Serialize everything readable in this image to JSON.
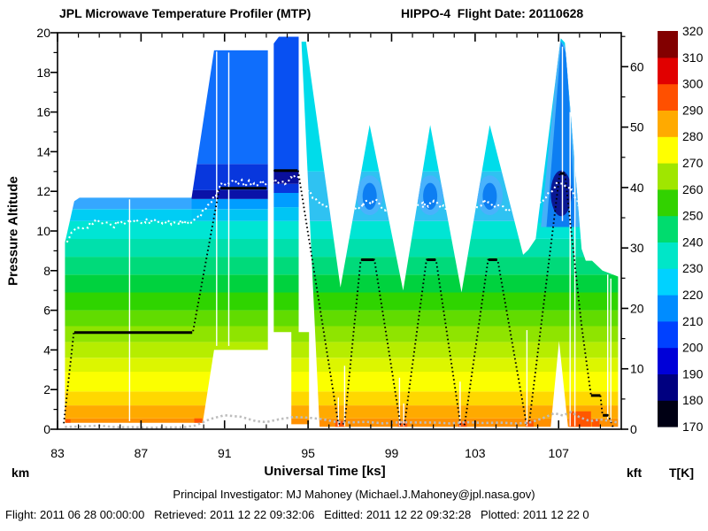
{
  "header": {
    "title_left": "JPL Microwave Temperature Profiler (MTP)",
    "title_right": "HIPPO-4  Flight Date: 20110628"
  },
  "footer": {
    "pi_line": "Principal Investigator: MJ Mahoney (Michael.J.Mahoney@jpl.nasa.gov)",
    "status_line": "Flight: 2011 06 28 00:00:00   Retrieved: 2011 12 22 09:32:06   Editted: 2011 12 22 09:32:28   Plotted: 2011 12 22 0"
  },
  "chart_data": {
    "type": "heatmap",
    "title": "JPL Microwave Temperature Profiler (MTP) - HIPPO-4 temperature curtain",
    "x_axis": {
      "label": "Universal Time [ks]",
      "unit_corner": "km",
      "range": [
        83,
        110
      ],
      "major_ticks": [
        83,
        87,
        91,
        95,
        99,
        103,
        107
      ],
      "minor_ticks": [
        84,
        85,
        86,
        88,
        89,
        90,
        92,
        93,
        94,
        96,
        97,
        98,
        100,
        101,
        102,
        104,
        105,
        106,
        108,
        109
      ]
    },
    "y_axis_left": {
      "label": "Pressure Altitude",
      "unit": "km",
      "range": [
        0,
        20
      ],
      "major_ticks": [
        0,
        2,
        4,
        6,
        8,
        10,
        12,
        14,
        16,
        18,
        20
      ],
      "minor_ticks": [
        1,
        3,
        5,
        7,
        9,
        11,
        13,
        15,
        17,
        19
      ]
    },
    "y_axis_right": {
      "unit": "kft",
      "km_per_kft": 0.3048,
      "major_ticks": [
        0,
        10,
        20,
        30,
        40,
        50,
        60
      ],
      "minor_ticks": [
        5,
        15,
        25,
        35,
        45,
        55,
        65
      ]
    },
    "colorbar": {
      "label": "T[K]",
      "range": [
        170,
        320
      ],
      "ticks": [
        170,
        180,
        190,
        200,
        210,
        220,
        230,
        240,
        250,
        260,
        270,
        280,
        290,
        300,
        310,
        320
      ],
      "colors": [
        "#000014",
        "#000080",
        "#0000d8",
        "#0041ff",
        "#008cff",
        "#00d2ff",
        "#00e6c8",
        "#00dc6e",
        "#32d200",
        "#a0e600",
        "#ffff00",
        "#ffaa00",
        "#ff5000",
        "#e10000",
        "#820000"
      ]
    },
    "base_bands_km": [
      [
        0,
        0.55,
        "#ff9000"
      ],
      [
        0.55,
        1.2,
        "#ffaa00"
      ],
      [
        1.2,
        1.9,
        "#ffd800"
      ],
      [
        1.9,
        2.9,
        "#fbff00"
      ],
      [
        2.9,
        3.6,
        "#dcf600"
      ],
      [
        3.6,
        4.4,
        "#b6ed00"
      ],
      [
        4.4,
        5.2,
        "#8fe400"
      ],
      [
        5.2,
        6.0,
        "#61dc00"
      ],
      [
        6.0,
        6.9,
        "#2fd400"
      ],
      [
        6.9,
        7.8,
        "#00d23e"
      ],
      [
        7.8,
        8.7,
        "#00da7a"
      ],
      [
        8.7,
        9.6,
        "#00e0ac"
      ],
      [
        9.6,
        10.5,
        "#00e5d4"
      ]
    ],
    "regions": [
      {
        "name": "ferry-leg",
        "upper_start": 10.5,
        "outline": [
          [
            83.35,
            0.32
          ],
          [
            83.35,
            9.4
          ],
          [
            83.8,
            11.5
          ],
          [
            84.05,
            11.68
          ],
          [
            89.42,
            11.68
          ],
          [
            89.42,
            0.32
          ]
        ],
        "upper_bands": [
          [
            10.5,
            11.1,
            "#00cdf4"
          ],
          [
            11.1,
            11.7,
            "#35a7ff"
          ]
        ]
      },
      {
        "name": "climb-column",
        "upper_start": 10.5,
        "outline": [
          [
            89.42,
            11.68
          ],
          [
            90.5,
            19.12
          ],
          [
            93.08,
            19.12
          ],
          [
            93.08,
            4.0
          ],
          [
            90.5,
            4.0
          ],
          [
            89.95,
            0.32
          ],
          [
            89.42,
            0.32
          ]
        ],
        "upper_bands": [
          [
            10.5,
            11.1,
            "#00c5f4"
          ],
          [
            11.1,
            11.62,
            "#009dff"
          ],
          [
            11.62,
            12.06,
            "#0a12a8"
          ],
          [
            12.06,
            13.38,
            "#0837dd"
          ],
          [
            13.38,
            19.12,
            "#0f6efc"
          ]
        ]
      },
      {
        "name": "high-column",
        "upper_start": 10.5,
        "outline": [
          [
            93.35,
            19.45
          ],
          [
            93.6,
            19.8
          ],
          [
            94.55,
            19.8
          ],
          [
            94.55,
            4.9
          ],
          [
            95.05,
            4.9
          ],
          [
            95.05,
            0.25
          ],
          [
            94.2,
            0.25
          ],
          [
            94.2,
            4.9
          ],
          [
            93.35,
            4.9
          ]
        ],
        "upper_bands": [
          [
            10.5,
            11.2,
            "#00c5f4"
          ],
          [
            11.2,
            11.92,
            "#009dff"
          ],
          [
            11.92,
            12.38,
            "#0837dd"
          ],
          [
            12.38,
            13.02,
            "#0a0f9b"
          ],
          [
            13.02,
            19.8,
            "#0850f2"
          ]
        ]
      },
      {
        "name": "profile-triangles",
        "upper_start": 10.5,
        "outline": [
          [
            94.68,
            19.55
          ],
          [
            94.9,
            19.55
          ],
          [
            96.55,
            7.15
          ],
          [
            97.95,
            15.35
          ],
          [
            99.55,
            7.0
          ],
          [
            100.85,
            15.35
          ],
          [
            102.35,
            6.9
          ],
          [
            103.7,
            15.35
          ],
          [
            105.3,
            8.8
          ],
          [
            105.55,
            9.05
          ],
          [
            105.55,
            0.12
          ],
          [
            95.55,
            0.12
          ]
        ],
        "upper_bands": [
          [
            10.5,
            13.0,
            "#2fc2f2"
          ],
          [
            13.0,
            19.6,
            "#00dcea"
          ]
        ],
        "cores": [
          {
            "type": "ellipse",
            "cx": 97.95,
            "cy": 11.8,
            "rx": 0.62,
            "ry": 1.0,
            "color": "#49b2fc"
          },
          {
            "type": "ellipse",
            "cx": 97.95,
            "cy": 11.75,
            "rx": 0.34,
            "ry": 0.68,
            "color": "#0d7ef2"
          },
          {
            "type": "ellipse",
            "cx": 100.85,
            "cy": 11.8,
            "rx": 0.62,
            "ry": 1.0,
            "color": "#49b2fc"
          },
          {
            "type": "ellipse",
            "cx": 100.85,
            "cy": 11.75,
            "rx": 0.34,
            "ry": 0.68,
            "color": "#0d7ef2"
          },
          {
            "type": "ellipse",
            "cx": 103.7,
            "cy": 11.8,
            "rx": 0.62,
            "ry": 1.0,
            "color": "#49b2fc"
          },
          {
            "type": "ellipse",
            "cx": 103.7,
            "cy": 11.75,
            "rx": 0.34,
            "ry": 0.68,
            "color": "#0d7ef2"
          }
        ]
      },
      {
        "name": "final-peak",
        "upper_start": 10.4,
        "outline": [
          [
            105.55,
            9.05
          ],
          [
            105.9,
            9.6
          ],
          [
            107.1,
            19.72
          ],
          [
            107.3,
            19.5
          ],
          [
            108.1,
            9.1
          ],
          [
            108.3,
            8.5
          ],
          [
            108.6,
            8.5
          ],
          [
            109.1,
            8.0
          ],
          [
            109.85,
            7.7
          ],
          [
            109.85,
            0.12
          ],
          [
            107.45,
            0.12
          ],
          [
            107.02,
            4.45
          ],
          [
            106.62,
            0.12
          ],
          [
            105.55,
            0.12
          ]
        ],
        "upper_bands": [
          [
            10.4,
            19.72,
            "#00d2f0"
          ]
        ],
        "cores": [
          {
            "type": "polygon",
            "color": "#45b0f8",
            "pts": [
              [
                106.15,
                10.2
              ],
              [
                107.05,
                19.65
              ],
              [
                107.5,
                19.05
              ],
              [
                108.0,
                10.2
              ]
            ]
          },
          {
            "type": "polygon",
            "color": "#0d7ef2",
            "pts": [
              [
                106.42,
                10.2
              ],
              [
                107.12,
                19.55
              ],
              [
                107.38,
                18.9
              ],
              [
                107.82,
                10.2
              ]
            ]
          },
          {
            "type": "ellipse",
            "cx": 107.12,
            "cy": 11.9,
            "rx": 0.5,
            "ry": 1.15,
            "color": "#0a1894"
          }
        ]
      }
    ],
    "gap_streaks": [
      [
        86.45,
        0.4,
        11.6
      ],
      [
        90.62,
        4.2,
        19.05
      ],
      [
        91.2,
        4.2,
        19.0
      ],
      [
        96.45,
        0.15,
        1.6
      ],
      [
        96.75,
        0.15,
        3.2
      ],
      [
        99.38,
        0.15,
        2.6
      ],
      [
        99.58,
        0.15,
        1.3
      ],
      [
        102.28,
        0.15,
        2.4
      ],
      [
        105.48,
        0.15,
        5.0
      ],
      [
        107.18,
        10.5,
        19.3
      ],
      [
        107.55,
        0.15,
        16.0
      ],
      [
        107.78,
        0.15,
        15.5
      ],
      [
        109.35,
        0.5,
        7.8
      ],
      [
        109.5,
        0.5,
        7.6
      ]
    ],
    "hot_flecks": {
      "color": "#ff4a00",
      "rects": [
        [
          83.38,
          83.62,
          0,
          0.5
        ],
        [
          89.55,
          89.93,
          0,
          0.55
        ],
        [
          96.3,
          96.75,
          0,
          0.42
        ],
        [
          99.3,
          99.75,
          0,
          0.38
        ],
        [
          102.2,
          102.6,
          0,
          0.38
        ],
        [
          105.42,
          105.8,
          0,
          0.42
        ],
        [
          107.5,
          108.55,
          0,
          0.9
        ],
        [
          108.6,
          108.95,
          0,
          0.5
        ]
      ]
    },
    "flight_track": {
      "color": "#000000",
      "segments": [
        [
          [
            83.3,
            0.3
          ],
          [
            83.78,
            4.88
          ],
          [
            89.48,
            4.88
          ],
          [
            90.75,
            12.15
          ],
          [
            93.05,
            12.15
          ]
        ],
        [
          [
            93.35,
            13.05
          ],
          [
            94.52,
            13.05
          ],
          [
            96.45,
            0.28
          ],
          [
            96.75,
            0.28
          ],
          [
            97.52,
            8.55
          ],
          [
            98.18,
            8.55
          ],
          [
            99.42,
            0.25
          ],
          [
            99.62,
            0.25
          ],
          [
            100.67,
            8.55
          ],
          [
            101.13,
            8.55
          ],
          [
            102.3,
            0.25
          ],
          [
            102.5,
            0.25
          ],
          [
            103.62,
            8.55
          ],
          [
            104.08,
            8.55
          ],
          [
            105.45,
            0.3
          ],
          [
            105.6,
            0.4
          ],
          [
            107.05,
            12.9
          ],
          [
            107.3,
            12.9
          ],
          [
            108.1,
            5.2
          ],
          [
            108.55,
            1.7
          ],
          [
            109.0,
            1.7
          ],
          [
            109.1,
            0.7
          ],
          [
            109.38,
            0.7
          ],
          [
            109.6,
            0.12
          ]
        ]
      ],
      "solid_segments": [
        [
          83.8,
          89.45,
          4.88
        ],
        [
          90.8,
          93.0,
          12.15
        ],
        [
          93.38,
          94.5,
          13.05
        ],
        [
          97.55,
          98.15,
          8.55
        ],
        [
          100.7,
          101.1,
          8.55
        ],
        [
          103.65,
          104.05,
          8.55
        ],
        [
          107.07,
          107.28,
          12.9
        ],
        [
          108.55,
          109.0,
          1.7
        ],
        [
          109.12,
          109.36,
          0.7
        ]
      ]
    },
    "tropopause_track": {
      "color": "#ffffff",
      "points": [
        [
          83.45,
          9.6
        ],
        [
          84.0,
          10.15
        ],
        [
          84.8,
          10.45
        ],
        [
          85.6,
          10.3
        ],
        [
          86.4,
          10.5
        ],
        [
          87.2,
          10.55
        ],
        [
          88.0,
          10.4
        ],
        [
          88.8,
          10.45
        ],
        [
          89.4,
          10.35
        ],
        [
          89.95,
          10.9
        ],
        [
          90.45,
          11.7
        ],
        [
          90.85,
          12.3
        ],
        [
          91.6,
          12.45
        ],
        [
          92.4,
          12.35
        ],
        [
          93.05,
          12.5
        ],
        [
          93.4,
          12.55
        ],
        [
          93.9,
          12.4
        ],
        [
          94.3,
          12.7
        ],
        [
          94.55,
          12.8
        ],
        [
          95.1,
          11.9
        ],
        [
          95.7,
          11.4
        ],
        [
          96.3,
          11.05
        ],
        [
          97.0,
          11.0
        ],
        [
          97.6,
          11.35
        ],
        [
          98.1,
          11.5
        ],
        [
          98.7,
          11.15
        ],
        [
          99.3,
          10.95
        ],
        [
          99.9,
          11.0
        ],
        [
          100.5,
          11.3
        ],
        [
          101.0,
          11.45
        ],
        [
          101.6,
          11.15
        ],
        [
          102.2,
          11.0
        ],
        [
          102.8,
          11.2
        ],
        [
          103.4,
          11.45
        ],
        [
          104.0,
          11.3
        ],
        [
          104.6,
          11.05
        ],
        [
          105.2,
          11.0
        ],
        [
          105.8,
          11.25
        ],
        [
          106.4,
          11.7
        ],
        [
          106.9,
          12.3
        ],
        [
          107.2,
          12.55
        ],
        [
          107.5,
          12.2
        ],
        [
          107.9,
          11.5
        ],
        [
          108.15,
          11.0
        ]
      ]
    },
    "surface_track": {
      "color": "#bdbdbd",
      "points": [
        [
          83.35,
          0.12
        ],
        [
          84.2,
          0.1
        ],
        [
          85.0,
          0.14
        ],
        [
          85.8,
          0.1
        ],
        [
          86.6,
          0.13
        ],
        [
          87.4,
          0.1
        ],
        [
          88.2,
          0.13
        ],
        [
          89.0,
          0.12
        ],
        [
          89.6,
          0.2
        ],
        [
          90.3,
          0.5
        ],
        [
          91.0,
          0.72
        ],
        [
          91.8,
          0.65
        ],
        [
          92.5,
          0.4
        ],
        [
          93.0,
          0.33
        ],
        [
          93.6,
          0.5
        ],
        [
          94.3,
          0.62
        ],
        [
          95.0,
          0.55
        ],
        [
          95.7,
          0.5
        ],
        [
          96.3,
          0.38
        ],
        [
          97.0,
          0.3
        ],
        [
          97.8,
          0.35
        ],
        [
          98.6,
          0.3
        ],
        [
          99.4,
          0.33
        ],
        [
          100.2,
          0.3
        ],
        [
          101.0,
          0.34
        ],
        [
          101.8,
          0.3
        ],
        [
          102.6,
          0.33
        ],
        [
          103.4,
          0.3
        ],
        [
          104.2,
          0.33
        ],
        [
          105.0,
          0.3
        ],
        [
          105.7,
          0.38
        ],
        [
          106.3,
          0.55
        ],
        [
          106.8,
          0.85
        ],
        [
          107.2,
          0.7
        ],
        [
          107.6,
          0.88
        ],
        [
          108.0,
          0.6
        ],
        [
          108.5,
          0.42
        ],
        [
          109.0,
          0.5
        ],
        [
          109.5,
          0.4
        ],
        [
          109.8,
          0.32
        ]
      ]
    }
  }
}
